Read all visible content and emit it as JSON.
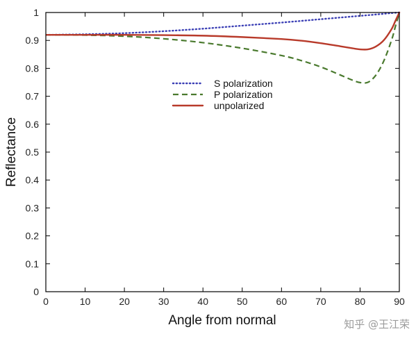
{
  "chart_data": {
    "type": "line",
    "xlabel": "Angle from normal",
    "ylabel": "Reflectance",
    "xlim": [
      0,
      90
    ],
    "ylim": [
      0,
      1
    ],
    "x_ticks": [
      "0",
      "10",
      "20",
      "30",
      "40",
      "50",
      "60",
      "70",
      "80",
      "90"
    ],
    "y_ticks": [
      "0",
      "0.1",
      "0.2",
      "0.3",
      "0.4",
      "0.5",
      "0.6",
      "0.7",
      "0.8",
      "0.9",
      "1"
    ],
    "grid": false,
    "legend_position": "center",
    "series": [
      {
        "name": "S polarization",
        "style": "dotted",
        "color": "#3b3fb5",
        "x": [
          0,
          10,
          20,
          30,
          40,
          50,
          60,
          70,
          80,
          85,
          88,
          90
        ],
        "y": [
          0.92,
          0.922,
          0.926,
          0.933,
          0.942,
          0.953,
          0.964,
          0.976,
          0.988,
          0.994,
          0.998,
          1.0
        ]
      },
      {
        "name": "P polarization",
        "style": "dashed",
        "color": "#4a7a2e",
        "x": [
          0,
          10,
          20,
          30,
          40,
          50,
          60,
          65,
          70,
          75,
          78,
          80,
          82,
          84,
          86,
          88,
          89,
          90
        ],
        "y": [
          0.92,
          0.919,
          0.915,
          0.906,
          0.892,
          0.872,
          0.846,
          0.828,
          0.805,
          0.776,
          0.758,
          0.749,
          0.75,
          0.775,
          0.825,
          0.9,
          0.95,
          1.0
        ]
      },
      {
        "name": "unpolarized",
        "style": "solid",
        "color": "#b83a2a",
        "x": [
          0,
          10,
          20,
          30,
          40,
          50,
          60,
          65,
          70,
          75,
          78,
          80,
          82,
          84,
          86,
          88,
          89,
          90
        ],
        "y": [
          0.92,
          0.92,
          0.92,
          0.919,
          0.917,
          0.912,
          0.905,
          0.899,
          0.89,
          0.879,
          0.872,
          0.868,
          0.868,
          0.878,
          0.9,
          0.94,
          0.97,
          1.0
        ]
      }
    ]
  },
  "watermark": "知乎 @王江荣"
}
